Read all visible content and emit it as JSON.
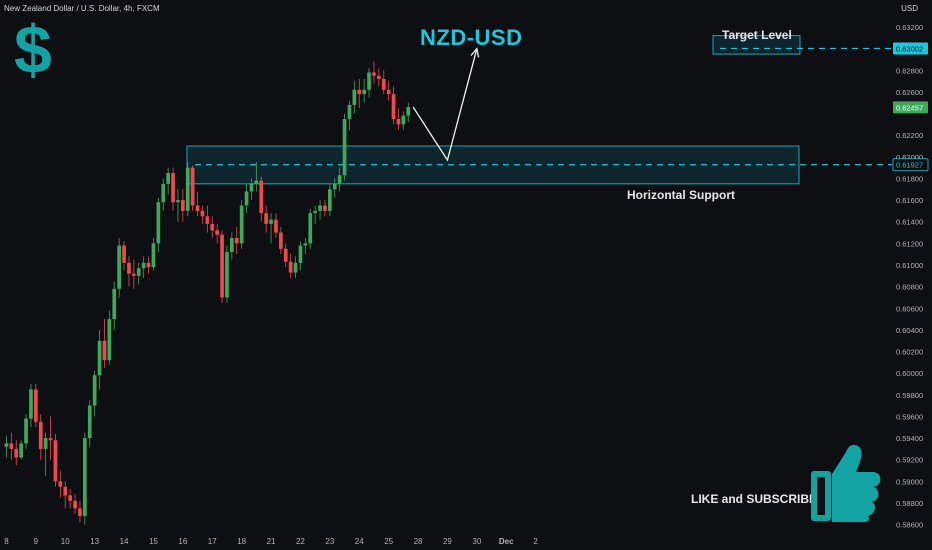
{
  "header": {
    "symbol_line": "New Zealand Dollar / U.S. Dollar, 4h, FXCM",
    "currency": "USD"
  },
  "overlay": {
    "title": "NZD-USD",
    "dollar_glyph": "$",
    "target_label": "Target Level",
    "support_label": "Horizontal Support",
    "like_label": "LIKE and SUBSCRIBE"
  },
  "colors": {
    "background": "#0e0f13",
    "up": "#3ea85b",
    "down": "#ef4a4a",
    "accent": "#1ec8dc",
    "zone_fill": "#103845",
    "zone_border": "#1ec8dc",
    "thumb": "#14a3a3"
  },
  "chart_data": {
    "type": "candlestick",
    "symbol": "NZD/USD",
    "timeframe": "4h",
    "ylim": [
      0.5855,
      0.6345
    ],
    "y_ticks": [
      "0.63200",
      "0.63002",
      "0.62800",
      "0.62600",
      "0.62457",
      "0.62200",
      "0.62000",
      "0.61927",
      "0.61800",
      "0.61600",
      "0.61400",
      "0.61200",
      "0.61000",
      "0.60800",
      "0.60600",
      "0.60400",
      "0.60200",
      "0.60000",
      "0.59800",
      "0.59600",
      "0.59400",
      "0.59200",
      "0.59000",
      "0.58800",
      "0.58600"
    ],
    "x_ticks": [
      {
        "label": "8",
        "bar": 0
      },
      {
        "label": "9",
        "bar": 6
      },
      {
        "label": "10",
        "bar": 12
      },
      {
        "label": "13",
        "bar": 18
      },
      {
        "label": "14",
        "bar": 24
      },
      {
        "label": "15",
        "bar": 30
      },
      {
        "label": "16",
        "bar": 36
      },
      {
        "label": "17",
        "bar": 42
      },
      {
        "label": "18",
        "bar": 48
      },
      {
        "label": "21",
        "bar": 54
      },
      {
        "label": "22",
        "bar": 60
      },
      {
        "label": "23",
        "bar": 66
      },
      {
        "label": "24",
        "bar": 72
      },
      {
        "label": "25",
        "bar": 78
      },
      {
        "label": "28",
        "bar": 84
      },
      {
        "label": "29",
        "bar": 90
      },
      {
        "label": "30",
        "bar": 96
      },
      {
        "label": "Dec",
        "bar": 102
      },
      {
        "label": "2",
        "bar": 108
      }
    ],
    "candles": [
      {
        "o": 0.5932,
        "h": 0.5942,
        "l": 0.5922,
        "c": 0.5935
      },
      {
        "o": 0.5935,
        "h": 0.5945,
        "l": 0.592,
        "c": 0.593
      },
      {
        "o": 0.593,
        "h": 0.5938,
        "l": 0.5915,
        "c": 0.5922
      },
      {
        "o": 0.5922,
        "h": 0.5938,
        "l": 0.592,
        "c": 0.5935
      },
      {
        "o": 0.5935,
        "h": 0.5962,
        "l": 0.593,
        "c": 0.5958
      },
      {
        "o": 0.5958,
        "h": 0.599,
        "l": 0.595,
        "c": 0.5985
      },
      {
        "o": 0.5985,
        "h": 0.599,
        "l": 0.595,
        "c": 0.5955
      },
      {
        "o": 0.5955,
        "h": 0.5962,
        "l": 0.592,
        "c": 0.593
      },
      {
        "o": 0.593,
        "h": 0.5945,
        "l": 0.5905,
        "c": 0.594
      },
      {
        "o": 0.594,
        "h": 0.596,
        "l": 0.592,
        "c": 0.5938
      },
      {
        "o": 0.5938,
        "h": 0.5944,
        "l": 0.5895,
        "c": 0.59
      },
      {
        "o": 0.59,
        "h": 0.591,
        "l": 0.5885,
        "c": 0.5895
      },
      {
        "o": 0.5895,
        "h": 0.59,
        "l": 0.5875,
        "c": 0.5887
      },
      {
        "o": 0.5887,
        "h": 0.5893,
        "l": 0.5875,
        "c": 0.5882
      },
      {
        "o": 0.5882,
        "h": 0.5888,
        "l": 0.587,
        "c": 0.5875
      },
      {
        "o": 0.5875,
        "h": 0.5882,
        "l": 0.5862,
        "c": 0.5868
      },
      {
        "o": 0.5868,
        "h": 0.5945,
        "l": 0.586,
        "c": 0.594
      },
      {
        "o": 0.594,
        "h": 0.5975,
        "l": 0.5932,
        "c": 0.597
      },
      {
        "o": 0.597,
        "h": 0.6002,
        "l": 0.596,
        "c": 0.5998
      },
      {
        "o": 0.5998,
        "h": 0.604,
        "l": 0.5985,
        "c": 0.603
      },
      {
        "o": 0.603,
        "h": 0.605,
        "l": 0.6005,
        "c": 0.6012
      },
      {
        "o": 0.6012,
        "h": 0.6058,
        "l": 0.6008,
        "c": 0.605
      },
      {
        "o": 0.605,
        "h": 0.6085,
        "l": 0.604,
        "c": 0.6078
      },
      {
        "o": 0.6078,
        "h": 0.6125,
        "l": 0.607,
        "c": 0.6118
      },
      {
        "o": 0.6118,
        "h": 0.6122,
        "l": 0.6095,
        "c": 0.6102
      },
      {
        "o": 0.6102,
        "h": 0.6108,
        "l": 0.608,
        "c": 0.6092
      },
      {
        "o": 0.6092,
        "h": 0.6105,
        "l": 0.6078,
        "c": 0.609
      },
      {
        "o": 0.609,
        "h": 0.6102,
        "l": 0.6082,
        "c": 0.6097
      },
      {
        "o": 0.6097,
        "h": 0.6108,
        "l": 0.6088,
        "c": 0.6102
      },
      {
        "o": 0.6102,
        "h": 0.6108,
        "l": 0.6092,
        "c": 0.6098
      },
      {
        "o": 0.6098,
        "h": 0.6125,
        "l": 0.6095,
        "c": 0.612
      },
      {
        "o": 0.612,
        "h": 0.6162,
        "l": 0.6112,
        "c": 0.6158
      },
      {
        "o": 0.6158,
        "h": 0.618,
        "l": 0.615,
        "c": 0.6175
      },
      {
        "o": 0.6175,
        "h": 0.619,
        "l": 0.6165,
        "c": 0.6185
      },
      {
        "o": 0.6185,
        "h": 0.619,
        "l": 0.615,
        "c": 0.6158
      },
      {
        "o": 0.6158,
        "h": 0.617,
        "l": 0.614,
        "c": 0.616
      },
      {
        "o": 0.616,
        "h": 0.617,
        "l": 0.614,
        "c": 0.615
      },
      {
        "o": 0.615,
        "h": 0.6195,
        "l": 0.6145,
        "c": 0.619
      },
      {
        "o": 0.619,
        "h": 0.6192,
        "l": 0.615,
        "c": 0.6155
      },
      {
        "o": 0.6155,
        "h": 0.6168,
        "l": 0.6145,
        "c": 0.615
      },
      {
        "o": 0.615,
        "h": 0.6155,
        "l": 0.6138,
        "c": 0.6145
      },
      {
        "o": 0.6145,
        "h": 0.6155,
        "l": 0.613,
        "c": 0.6138
      },
      {
        "o": 0.6138,
        "h": 0.6145,
        "l": 0.6125,
        "c": 0.6132
      },
      {
        "o": 0.6132,
        "h": 0.6138,
        "l": 0.612,
        "c": 0.6128
      },
      {
        "o": 0.6128,
        "h": 0.6132,
        "l": 0.6065,
        "c": 0.607
      },
      {
        "o": 0.607,
        "h": 0.6118,
        "l": 0.6065,
        "c": 0.6112
      },
      {
        "o": 0.6112,
        "h": 0.613,
        "l": 0.6105,
        "c": 0.6125
      },
      {
        "o": 0.6125,
        "h": 0.6135,
        "l": 0.611,
        "c": 0.612
      },
      {
        "o": 0.612,
        "h": 0.616,
        "l": 0.6115,
        "c": 0.6155
      },
      {
        "o": 0.6155,
        "h": 0.6175,
        "l": 0.6148,
        "c": 0.6168
      },
      {
        "o": 0.6168,
        "h": 0.618,
        "l": 0.616,
        "c": 0.6175
      },
      {
        "o": 0.6175,
        "h": 0.6195,
        "l": 0.6168,
        "c": 0.6178
      },
      {
        "o": 0.6178,
        "h": 0.6182,
        "l": 0.614,
        "c": 0.6148
      },
      {
        "o": 0.6148,
        "h": 0.6155,
        "l": 0.613,
        "c": 0.6138
      },
      {
        "o": 0.6138,
        "h": 0.6148,
        "l": 0.612,
        "c": 0.6142
      },
      {
        "o": 0.6142,
        "h": 0.6148,
        "l": 0.6125,
        "c": 0.613
      },
      {
        "o": 0.613,
        "h": 0.6135,
        "l": 0.611,
        "c": 0.6115
      },
      {
        "o": 0.6115,
        "h": 0.612,
        "l": 0.6098,
        "c": 0.6103
      },
      {
        "o": 0.6103,
        "h": 0.611,
        "l": 0.6088,
        "c": 0.6093
      },
      {
        "o": 0.6093,
        "h": 0.6108,
        "l": 0.6088,
        "c": 0.6102
      },
      {
        "o": 0.6102,
        "h": 0.6122,
        "l": 0.6095,
        "c": 0.6118
      },
      {
        "o": 0.6118,
        "h": 0.6125,
        "l": 0.611,
        "c": 0.612
      },
      {
        "o": 0.612,
        "h": 0.6152,
        "l": 0.6115,
        "c": 0.6148
      },
      {
        "o": 0.6148,
        "h": 0.6155,
        "l": 0.6138,
        "c": 0.615
      },
      {
        "o": 0.615,
        "h": 0.616,
        "l": 0.6142,
        "c": 0.6155
      },
      {
        "o": 0.6155,
        "h": 0.616,
        "l": 0.6145,
        "c": 0.615
      },
      {
        "o": 0.615,
        "h": 0.6175,
        "l": 0.6145,
        "c": 0.617
      },
      {
        "o": 0.617,
        "h": 0.618,
        "l": 0.6162,
        "c": 0.6175
      },
      {
        "o": 0.6175,
        "h": 0.619,
        "l": 0.6168,
        "c": 0.6183
      },
      {
        "o": 0.6183,
        "h": 0.624,
        "l": 0.6178,
        "c": 0.6235
      },
      {
        "o": 0.6235,
        "h": 0.6252,
        "l": 0.6225,
        "c": 0.6248
      },
      {
        "o": 0.6248,
        "h": 0.627,
        "l": 0.624,
        "c": 0.6262
      },
      {
        "o": 0.6262,
        "h": 0.6272,
        "l": 0.6245,
        "c": 0.6258
      },
      {
        "o": 0.6258,
        "h": 0.6272,
        "l": 0.625,
        "c": 0.6262
      },
      {
        "o": 0.6262,
        "h": 0.6282,
        "l": 0.6255,
        "c": 0.6278
      },
      {
        "o": 0.6278,
        "h": 0.6288,
        "l": 0.6268,
        "c": 0.6275
      },
      {
        "o": 0.6275,
        "h": 0.6282,
        "l": 0.6265,
        "c": 0.6272
      },
      {
        "o": 0.6272,
        "h": 0.628,
        "l": 0.6258,
        "c": 0.6262
      },
      {
        "o": 0.6262,
        "h": 0.627,
        "l": 0.6252,
        "c": 0.6258
      },
      {
        "o": 0.6258,
        "h": 0.6265,
        "l": 0.623,
        "c": 0.6235
      },
      {
        "o": 0.6235,
        "h": 0.6245,
        "l": 0.6225,
        "c": 0.623
      },
      {
        "o": 0.623,
        "h": 0.6242,
        "l": 0.6225,
        "c": 0.6238
      },
      {
        "o": 0.6238,
        "h": 0.625,
        "l": 0.6232,
        "c": 0.6246
      }
    ],
    "support_zone": [
      0.6175,
      0.621
    ],
    "support_line": 0.61927,
    "target_zone": [
      0.6295,
      0.6312
    ],
    "target_line": 0.63002,
    "last_price": 0.62457,
    "projection": [
      {
        "bar": 83,
        "y": 0.6246
      },
      {
        "bar": 90,
        "y": 0.6197
      },
      {
        "bar": 96,
        "y": 0.63
      }
    ]
  }
}
